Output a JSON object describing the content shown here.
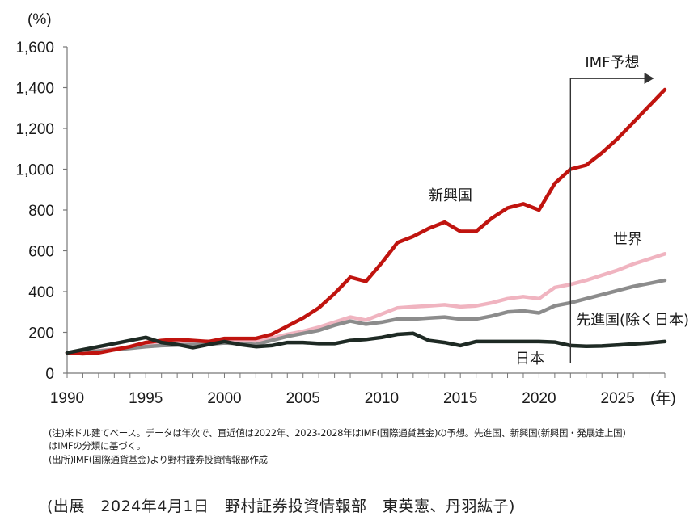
{
  "chart_data": {
    "type": "line",
    "title": "",
    "ylabel": "(%)",
    "xlabel": "(年)",
    "ylim": [
      0,
      1600
    ],
    "xlim": [
      1990,
      2028
    ],
    "yticks": [
      0,
      200,
      400,
      600,
      800,
      1000,
      1200,
      1400,
      1600
    ],
    "ytick_labels": [
      "0",
      "200",
      "400",
      "600",
      "800",
      "1,000",
      "1,200",
      "1,400",
      "1,600"
    ],
    "xticks": [
      1990,
      1995,
      2000,
      2005,
      2010,
      2015,
      2020,
      2025
    ],
    "xtick_labels": [
      "1990",
      "1995",
      "2000",
      "2005",
      "2010",
      "2015",
      "2020",
      "2025"
    ],
    "grid": false,
    "legend": "inline labels",
    "x": [
      1990,
      1991,
      1992,
      1993,
      1994,
      1995,
      1996,
      1997,
      1998,
      1999,
      2000,
      2001,
      2002,
      2003,
      2004,
      2005,
      2006,
      2007,
      2008,
      2009,
      2010,
      2011,
      2012,
      2013,
      2014,
      2015,
      2016,
      2017,
      2018,
      2019,
      2020,
      2021,
      2022,
      2023,
      2024,
      2025,
      2026,
      2027,
      2028
    ],
    "series": [
      {
        "name": "新興国",
        "color": "#c0140f",
        "values": [
          100,
          95,
          100,
          115,
          130,
          150,
          160,
          165,
          160,
          155,
          170,
          170,
          170,
          190,
          230,
          270,
          320,
          390,
          470,
          450,
          540,
          640,
          670,
          710,
          740,
          695,
          695,
          760,
          810,
          830,
          800,
          930,
          1000,
          1020,
          1080,
          1150,
          1230,
          1310,
          1390
        ]
      },
      {
        "name": "世界",
        "color": "#f0b4c0",
        "values": [
          100,
          105,
          110,
          118,
          128,
          140,
          145,
          148,
          150,
          155,
          165,
          160,
          158,
          172,
          190,
          205,
          225,
          250,
          275,
          260,
          290,
          320,
          325,
          330,
          335,
          325,
          330,
          345,
          365,
          375,
          365,
          420,
          435,
          455,
          480,
          505,
          535,
          560,
          585
        ]
      },
      {
        "name": "先進国(除く日本)",
        "color": "#8c8c8c",
        "values": [
          100,
          102,
          108,
          115,
          122,
          130,
          135,
          138,
          140,
          142,
          148,
          145,
          140,
          160,
          180,
          195,
          210,
          235,
          255,
          240,
          250,
          265,
          265,
          270,
          275,
          265,
          265,
          280,
          300,
          305,
          295,
          330,
          345,
          365,
          385,
          405,
          425,
          440,
          455
        ]
      },
      {
        "name": "日本",
        "color": "#1e2a24",
        "values": [
          100,
          115,
          130,
          145,
          160,
          175,
          150,
          140,
          125,
          140,
          155,
          140,
          130,
          135,
          150,
          150,
          145,
          145,
          160,
          165,
          175,
          190,
          195,
          160,
          150,
          135,
          155,
          155,
          155,
          155,
          155,
          152,
          135,
          132,
          133,
          138,
          143,
          148,
          155
        ]
      }
    ],
    "annotations": {
      "forecast_label": "IMF予想",
      "forecast_start_year": 2022,
      "forecast_arrow_end_year": 2027
    }
  },
  "notes": {
    "line1": "(注)米ドル建てベース。データは年次で、直近値は2022年、2023-2028年はIMF(国際通貨基金)の予想。先進国、新興国(新興国・発展途上国)",
    "line2": "はIMFの分類に基づく。",
    "line3": "(出所)IMF(国際通貨基金)より野村證券投資情報部作成"
  },
  "source": "(出展　2024年4月1日　野村証券投資情報部　東英憲、丹羽紘子)"
}
